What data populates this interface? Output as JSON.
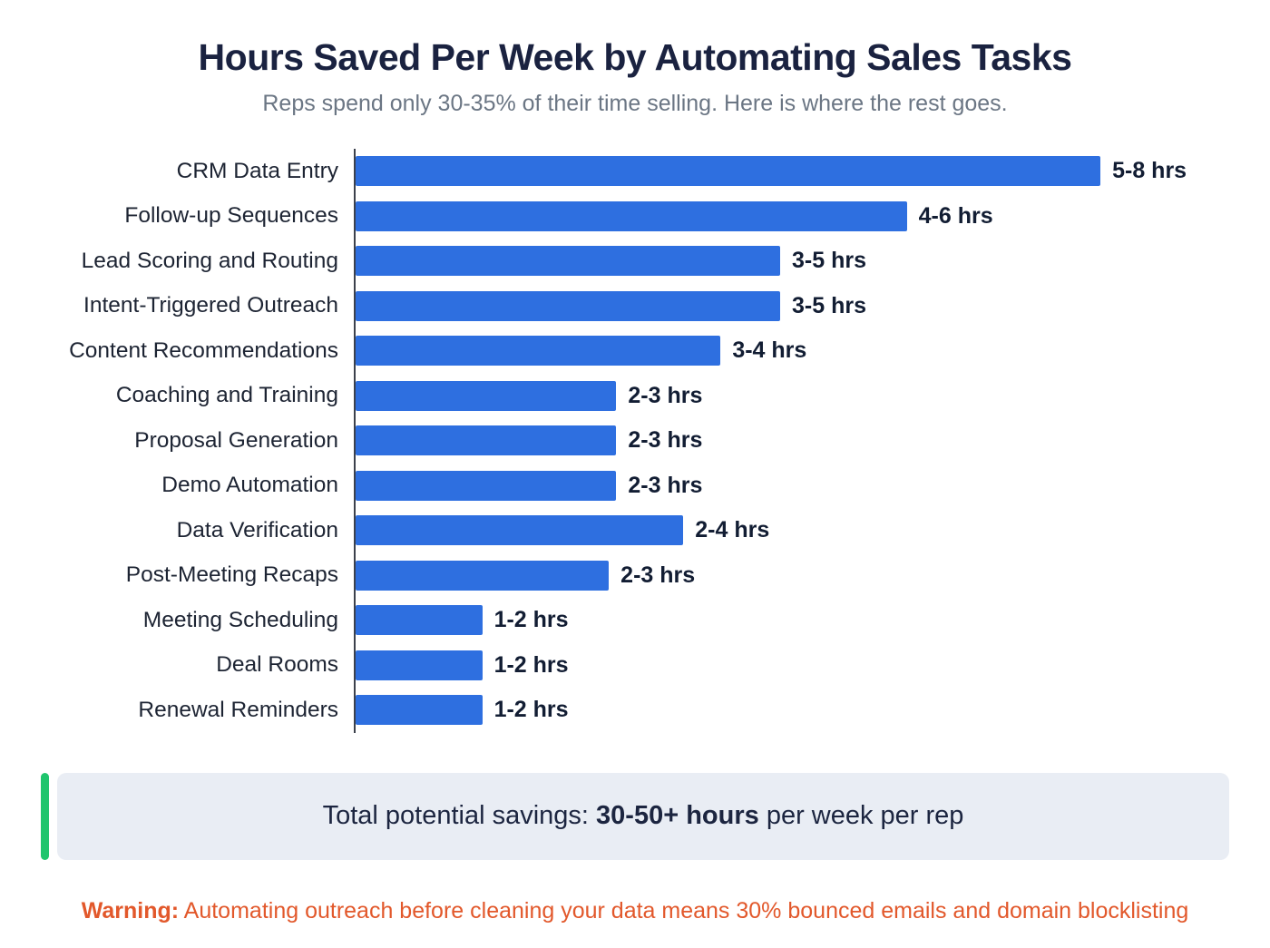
{
  "chart_data": {
    "type": "bar",
    "orientation": "horizontal",
    "title": "Hours Saved Per Week by Automating Sales Tasks",
    "subtitle": "Reps spend only 30-35% of their time selling. Here is where the rest goes.",
    "unit": "hrs",
    "legend": "none",
    "grid": false,
    "rows": [
      {
        "label": "CRM Data Entry",
        "range": [
          5,
          8
        ],
        "value_label": "5-8 hrs",
        "bar_pct": 100
      },
      {
        "label": "Follow-up Sequences",
        "range": [
          4,
          6
        ],
        "value_label": "4-6 hrs",
        "bar_pct": 74
      },
      {
        "label": "Lead Scoring and Routing",
        "range": [
          3,
          5
        ],
        "value_label": "3-5 hrs",
        "bar_pct": 57
      },
      {
        "label": "Intent-Triggered Outreach",
        "range": [
          3,
          5
        ],
        "value_label": "3-5 hrs",
        "bar_pct": 57
      },
      {
        "label": "Content Recommendations",
        "range": [
          3,
          4
        ],
        "value_label": "3-4 hrs",
        "bar_pct": 49
      },
      {
        "label": "Coaching and Training",
        "range": [
          2,
          3
        ],
        "value_label": "2-3 hrs",
        "bar_pct": 35
      },
      {
        "label": "Proposal Generation",
        "range": [
          2,
          3
        ],
        "value_label": "2-3 hrs",
        "bar_pct": 35
      },
      {
        "label": "Demo Automation",
        "range": [
          2,
          3
        ],
        "value_label": "2-3 hrs",
        "bar_pct": 35
      },
      {
        "label": "Data Verification",
        "range": [
          2,
          4
        ],
        "value_label": "2-4 hrs",
        "bar_pct": 44
      },
      {
        "label": "Post-Meeting Recaps",
        "range": [
          2,
          3
        ],
        "value_label": "2-3 hrs",
        "bar_pct": 34
      },
      {
        "label": "Meeting Scheduling",
        "range": [
          1,
          2
        ],
        "value_label": "1-2 hrs",
        "bar_pct": 17
      },
      {
        "label": "Deal Rooms",
        "range": [
          1,
          2
        ],
        "value_label": "1-2 hrs",
        "bar_pct": 17
      },
      {
        "label": "Renewal Reminders",
        "range": [
          1,
          2
        ],
        "value_label": "1-2 hrs",
        "bar_pct": 17
      }
    ]
  },
  "summary": {
    "prefix": "Total potential savings: ",
    "highlight": "30-50+ hours",
    "suffix": " per week per rep"
  },
  "warning": {
    "label": "Warning:",
    "text": " Automating outreach before cleaning your data means 30% bounced emails and domain blocklisting"
  },
  "colors": {
    "bar": "#2e6fe0",
    "title": "#1a2240",
    "subtitle": "#6b7684",
    "callout_bg": "#e9edf4",
    "callout_border": "#1fc56d",
    "warning": "#e2582b"
  }
}
